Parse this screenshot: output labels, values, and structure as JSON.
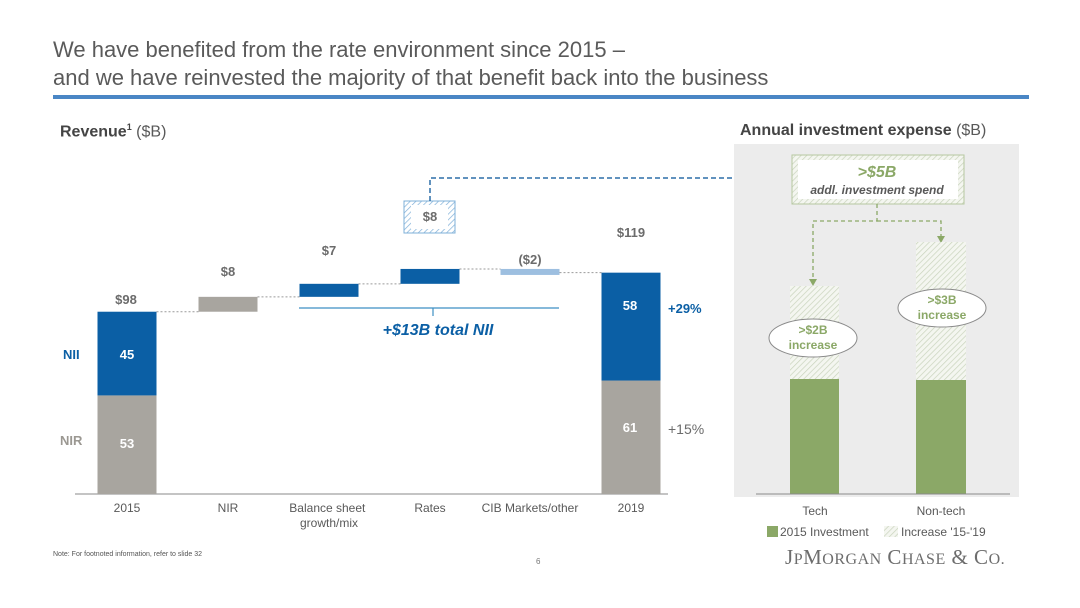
{
  "title_line1": "We have benefited from the rate environment since 2015 –",
  "title_line2": "and we have reinvested the majority of that benefit back into the business",
  "revenue_title_bold": "Revenue",
  "revenue_title_sup": "1",
  "revenue_title_unit": " ($B)",
  "investment_title_bold": "Annual investment expense",
  "investment_title_unit": " ($B)",
  "footnote": "Note: For footnoted information, refer to slide 32",
  "page_number": "6",
  "logo": "JPMorgan Chase & Co.",
  "colors": {
    "nii": "#0b5fa5",
    "nir": "#a8a59f",
    "other_market": "#9dbfe0",
    "green": "#8ba867",
    "teal_line": "#3e8fc3"
  },
  "chart_data": [
    {
      "type": "bar",
      "subtype": "waterfall",
      "title": "Revenue¹ ($B)",
      "categories": [
        "2015",
        "NIR",
        "Balance sheet growth/mix",
        "Rates",
        "CIB Markets/other",
        "2019"
      ],
      "ylim": [
        0,
        140
      ],
      "grid": false,
      "series": [
        {
          "name": "NIR",
          "values": [
            53,
            null,
            null,
            null,
            null,
            61
          ]
        },
        {
          "name": "NII",
          "values": [
            45,
            null,
            null,
            null,
            null,
            58
          ]
        }
      ],
      "deltas": [
        null,
        8,
        7,
        8,
        -2,
        null
      ],
      "totals": [
        98,
        null,
        null,
        null,
        null,
        119
      ],
      "labels": {
        "totals": [
          "$98",
          "$119"
        ],
        "deltas": [
          "$8",
          "$7",
          "$8",
          "($2)"
        ],
        "segments_2015": [
          "53",
          "45"
        ],
        "segments_2019": [
          "61",
          "58"
        ],
        "legend_nii": "NII",
        "legend_nir": "NIR",
        "nii_growth": "+29%",
        "nir_growth": "+15%",
        "total_nii_note": "+$13B total NII"
      }
    },
    {
      "type": "bar",
      "subtype": "stacked",
      "title": "Annual investment expense ($B)",
      "categories": [
        "Tech",
        "Non-tech"
      ],
      "series": [
        {
          "name": "2015 Investment",
          "values": [
            null,
            null
          ]
        },
        {
          "name": "Increase '15-'19",
          "values": [
            2,
            3
          ]
        }
      ],
      "labels": {
        "increase_tech": ">$2B increase",
        "increase_nontech": ">$3B increase",
        "callout_value": ">$5B",
        "callout_text": "addl. investment spend"
      },
      "legend": [
        "2015 Investment",
        "Increase '15-'19"
      ]
    }
  ]
}
